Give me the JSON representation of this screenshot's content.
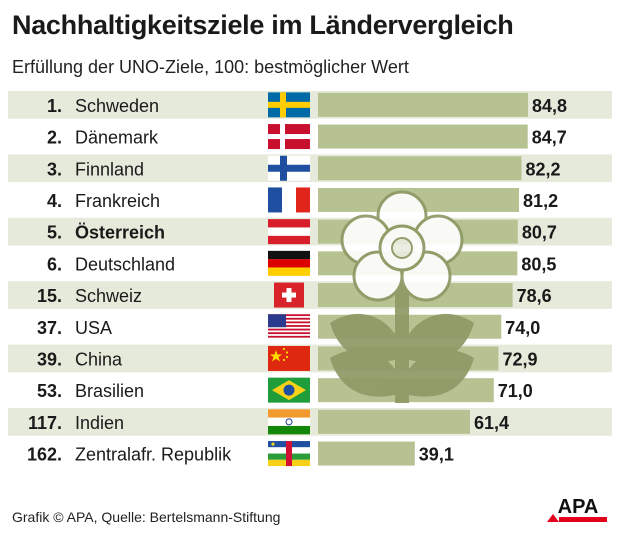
{
  "chart_data": {
    "type": "bar",
    "title": "Nachhaltigkeitsziele im Ländervergleich",
    "subtitle": "Erfüllung der UNO-Ziele, 100: bestmöglicher Wert",
    "xlim": [
      0,
      100
    ],
    "highlight": "Österreich",
    "categories": [
      "Schweden",
      "Dänemark",
      "Finnland",
      "Frankreich",
      "Österreich",
      "Deutschland",
      "Schweiz",
      "USA",
      "China",
      "Brasilien",
      "Indien",
      "Zentralafr. Republik"
    ],
    "ranks": [
      "1.",
      "2.",
      "3.",
      "4.",
      "5.",
      "6.",
      "15.",
      "37.",
      "39.",
      "53.",
      "117.",
      "162."
    ],
    "values": [
      84.8,
      84.7,
      82.2,
      81.2,
      80.7,
      80.5,
      78.6,
      74.0,
      72.9,
      71.0,
      61.4,
      39.1
    ],
    "value_labels": [
      "84,8",
      "84,7",
      "82,2",
      "81,2",
      "80,7",
      "80,5",
      "78,6",
      "74,0",
      "72,9",
      "71,0",
      "61,4",
      "39,1"
    ],
    "flag_icons": [
      "flag-sweden-icon",
      "flag-denmark-icon",
      "flag-finland-icon",
      "flag-france-icon",
      "flag-austria-icon",
      "flag-germany-icon",
      "flag-switzerland-icon",
      "flag-usa-icon",
      "flag-china-icon",
      "flag-brazil-icon",
      "flag-india-icon",
      "flag-central-african-republic-icon"
    ]
  },
  "decoration": {
    "icon": "flower-icon"
  },
  "colors": {
    "bar": "#b7c293",
    "stripe": "#e6eadb",
    "flower_fill": "#ffffff",
    "flower_stem": "#8e9a66",
    "brand_red": "#e2001a"
  },
  "footer": {
    "credit": "Grafik © APA, Quelle: Bertelsmann-Stiftung"
  },
  "logo": {
    "text": "APA"
  }
}
